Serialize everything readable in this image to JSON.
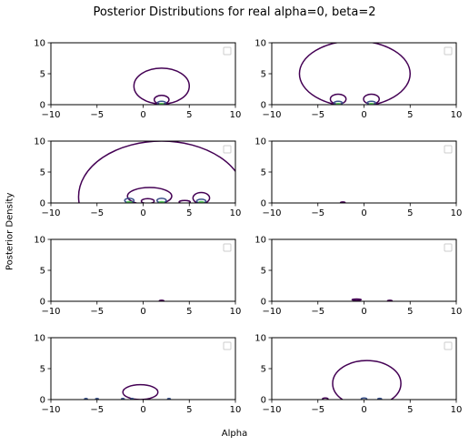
{
  "chart_data": {
    "type": "contour",
    "title": "Posterior Distributions for real alpha=0, beta=2",
    "xlabel": "Alpha",
    "ylabel": "Posterior Density",
    "xlim": [
      -10,
      10
    ],
    "ylim": [
      0,
      10
    ],
    "xticks": [
      "−10",
      "−5",
      "0",
      "5",
      "10"
    ],
    "yticks": [
      "0",
      "5",
      "10"
    ],
    "legend": "top-right (empty)",
    "colors": {
      "outer": "#440154",
      "mid": "#3b528b",
      "inner": "#21918c",
      "core": "#5ec962",
      "peak": "#fde725"
    },
    "panels": [
      {
        "id": 1,
        "contours": [
          {
            "cx": 2,
            "cy": 3,
            "rx": 3,
            "ry": 2.9,
            "level": "outer"
          },
          {
            "cx": 2,
            "cy": 0.8,
            "rx": 0.8,
            "ry": 0.7,
            "level": "outer"
          },
          {
            "cx": 2,
            "cy": 0.25,
            "rx": 0.45,
            "ry": 0.3,
            "level": "mid"
          },
          {
            "cx": 2,
            "cy": 0.1,
            "rx": 0.2,
            "ry": 0.1,
            "level": "core"
          }
        ]
      },
      {
        "id": 2,
        "contours": [
          {
            "cx": -1,
            "cy": 5,
            "rx": 6,
            "ry": 5.3,
            "level": "outer"
          },
          {
            "cx": -2.8,
            "cy": 0.9,
            "rx": 0.85,
            "ry": 0.8,
            "level": "outer"
          },
          {
            "cx": 0.8,
            "cy": 0.9,
            "rx": 0.85,
            "ry": 0.8,
            "level": "outer"
          },
          {
            "cx": -2.8,
            "cy": 0.25,
            "rx": 0.45,
            "ry": 0.3,
            "level": "mid"
          },
          {
            "cx": 0.8,
            "cy": 0.25,
            "rx": 0.45,
            "ry": 0.3,
            "level": "mid"
          },
          {
            "cx": -2.8,
            "cy": 0.1,
            "rx": 0.2,
            "ry": 0.1,
            "level": "core"
          },
          {
            "cx": 0.8,
            "cy": 0.1,
            "rx": 0.2,
            "ry": 0.1,
            "level": "core"
          }
        ]
      },
      {
        "id": 3,
        "contours": [
          {
            "cx": 2,
            "cy": 1,
            "rx": 9,
            "ry": 9,
            "level": "outer"
          },
          {
            "cx": 0.7,
            "cy": 1.1,
            "rx": 2.4,
            "ry": 1.4,
            "level": "outer"
          },
          {
            "cx": 0.5,
            "cy": 0.3,
            "rx": 0.7,
            "ry": 0.4,
            "level": "outer"
          },
          {
            "cx": 6.3,
            "cy": 0.8,
            "rx": 0.9,
            "ry": 0.9,
            "level": "outer"
          },
          {
            "cx": 4.5,
            "cy": 0.15,
            "rx": 0.6,
            "ry": 0.25,
            "level": "outer"
          },
          {
            "cx": -1.5,
            "cy": 0.4,
            "rx": 0.5,
            "ry": 0.35,
            "level": "mid"
          },
          {
            "cx": 2,
            "cy": 0.4,
            "rx": 0.5,
            "ry": 0.35,
            "level": "mid"
          },
          {
            "cx": 6.3,
            "cy": 0.3,
            "rx": 0.5,
            "ry": 0.3,
            "level": "mid"
          },
          {
            "cx": -1.5,
            "cy": 0.1,
            "rx": 0.25,
            "ry": 0.12,
            "level": "core"
          },
          {
            "cx": 2,
            "cy": 0.1,
            "rx": 0.25,
            "ry": 0.12,
            "level": "core"
          },
          {
            "cx": 6.3,
            "cy": 0.1,
            "rx": 0.25,
            "ry": 0.12,
            "level": "core"
          }
        ]
      },
      {
        "id": 4,
        "contours": [
          {
            "cx": -2.3,
            "cy": 0.05,
            "rx": 0.25,
            "ry": 0.12,
            "level": "outer"
          }
        ]
      },
      {
        "id": 5,
        "contours": [
          {
            "cx": 2,
            "cy": 0.05,
            "rx": 0.25,
            "ry": 0.12,
            "level": "outer"
          }
        ]
      },
      {
        "id": 6,
        "contours": [
          {
            "cx": -0.8,
            "cy": 0.25,
            "rx": 0.5,
            "ry": 0.12,
            "level": "outer"
          },
          {
            "cx": 2.8,
            "cy": 0.05,
            "rx": 0.25,
            "ry": 0.12,
            "level": "outer"
          }
        ]
      },
      {
        "id": 7,
        "contours": [
          {
            "cx": -0.3,
            "cy": 1.2,
            "rx": 1.9,
            "ry": 1.2,
            "level": "outer"
          },
          {
            "cx": -6.2,
            "cy": 0.08,
            "rx": 0.15,
            "ry": 0.1,
            "level": "mid"
          },
          {
            "cx": -5,
            "cy": 0.08,
            "rx": 0.15,
            "ry": 0.1,
            "level": "mid"
          },
          {
            "cx": -2.2,
            "cy": 0.08,
            "rx": 0.15,
            "ry": 0.1,
            "level": "mid"
          },
          {
            "cx": -1.2,
            "cy": 0.08,
            "rx": 0.15,
            "ry": 0.1,
            "level": "mid"
          },
          {
            "cx": 2.8,
            "cy": 0.08,
            "rx": 0.15,
            "ry": 0.1,
            "level": "mid"
          }
        ]
      },
      {
        "id": 8,
        "contours": [
          {
            "cx": 0.3,
            "cy": 2.6,
            "rx": 3.7,
            "ry": 3.7,
            "level": "outer"
          },
          {
            "cx": -4.2,
            "cy": 0.1,
            "rx": 0.3,
            "ry": 0.15,
            "level": "outer"
          },
          {
            "cx": 0,
            "cy": 0.1,
            "rx": 0.3,
            "ry": 0.15,
            "level": "mid"
          },
          {
            "cx": 1.7,
            "cy": 0.1,
            "rx": 0.2,
            "ry": 0.1,
            "level": "mid"
          }
        ]
      }
    ]
  }
}
